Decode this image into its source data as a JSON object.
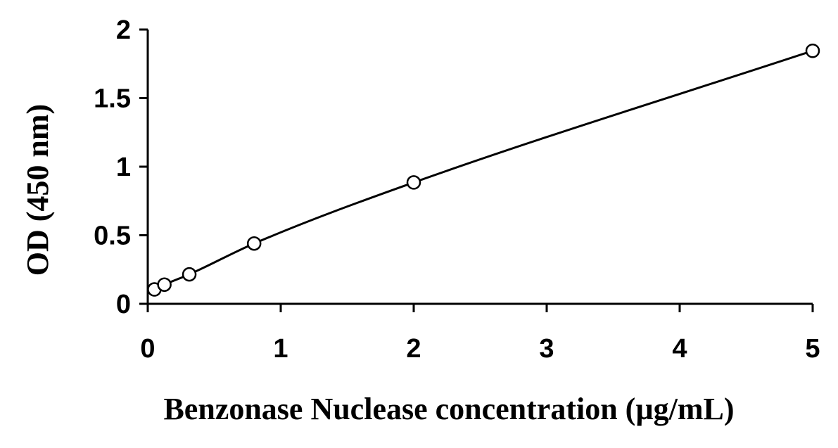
{
  "chart_data": {
    "type": "scatter",
    "title": "",
    "xlabel": "Benzonase Nuclease concentration (µg/mL)",
    "ylabel": "OD (450 nm)",
    "xlim": [
      0,
      5
    ],
    "ylim": [
      0,
      2
    ],
    "x_ticks": [
      0,
      1,
      2,
      3,
      4,
      5
    ],
    "y_ticks": [
      0,
      0.5,
      1,
      1.5,
      2
    ],
    "x_tick_labels": [
      "0",
      "1",
      "2",
      "3",
      "4",
      "5"
    ],
    "y_tick_labels": [
      "0",
      "0.5",
      "1",
      "1.5",
      "2"
    ],
    "grid": false,
    "legend": "none",
    "fit_line": true,
    "series": [
      {
        "x": [
          0.05,
          0.125,
          0.3125,
          0.8,
          2,
          5
        ],
        "y": [
          0.105,
          0.14,
          0.215,
          0.44,
          0.885,
          1.845
        ]
      }
    ],
    "colors": {
      "axis": "#000000",
      "line": "#000000",
      "marker_fill": "#ffffff",
      "marker_stroke": "#000000"
    }
  }
}
